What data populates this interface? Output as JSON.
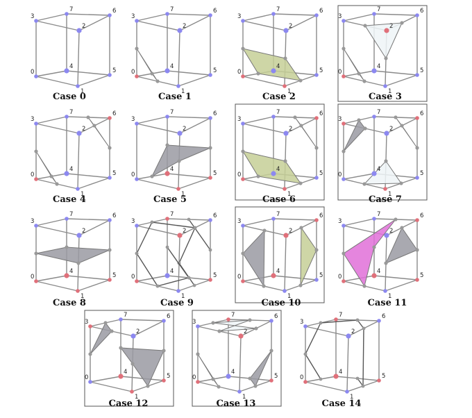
{
  "colors": {
    "inside_vertex": "#e0707a",
    "outside_vertex": "#8c88f0",
    "edge": "#8a8a8a",
    "green_fill": "#c6cf96",
    "gray_fill": "#9a9aa2",
    "light_fill": "#eef5f7",
    "pink_fill": "#e070d8"
  },
  "vertex_labels": [
    "0",
    "1",
    "2",
    "3",
    "4",
    "5",
    "6",
    "7"
  ],
  "cases": [
    {
      "label": "Case 0",
      "framed": false
    },
    {
      "label": "Case 1",
      "framed": false
    },
    {
      "label": "Case 2",
      "framed": false
    },
    {
      "label": "Case 3",
      "framed": true
    },
    {
      "label": "Case 4",
      "framed": false
    },
    {
      "label": "Case 5",
      "framed": false
    },
    {
      "label": "Case 6",
      "framed": true
    },
    {
      "label": "Case 7",
      "framed": true
    },
    {
      "label": "Case 8",
      "framed": false
    },
    {
      "label": "Case 9",
      "framed": false
    },
    {
      "label": "Case 10",
      "framed": true
    },
    {
      "label": "Case 11",
      "framed": false
    },
    {
      "label": "Case 12",
      "framed": true
    },
    {
      "label": "Case 13",
      "framed": true
    },
    {
      "label": "Case 14",
      "framed": false
    }
  ]
}
